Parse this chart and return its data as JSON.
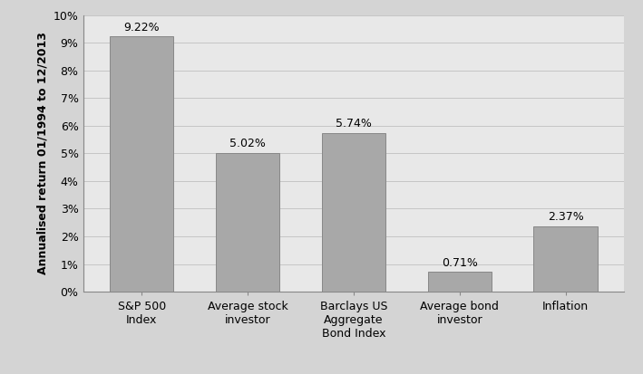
{
  "categories": [
    "S&P 500\nIndex",
    "Average stock\ninvestor",
    "Barclays US\nAggregate\nBond Index",
    "Average bond\ninvestor",
    "Inflation"
  ],
  "values": [
    9.22,
    5.02,
    5.74,
    0.71,
    2.37
  ],
  "labels": [
    "9.22%",
    "5.02%",
    "5.74%",
    "0.71%",
    "2.37%"
  ],
  "bar_color": "#a8a8a8",
  "bar_edgecolor": "#888888",
  "figure_background": "#d4d4d4",
  "axes_background": "#e8e8e8",
  "ylabel": "Annualised return 01/1994 to 12/2013",
  "ylim": [
    0,
    10
  ],
  "yticks": [
    0,
    1,
    2,
    3,
    4,
    5,
    6,
    7,
    8,
    9,
    10
  ],
  "ytick_labels": [
    "0%",
    "1%",
    "2%",
    "3%",
    "4%",
    "5%",
    "6%",
    "7%",
    "8%",
    "9%",
    "10%"
  ],
  "label_fontsize": 9,
  "ylabel_fontsize": 9,
  "tick_fontsize": 9,
  "bar_width": 0.6,
  "grid_color": "#c0c0c0"
}
